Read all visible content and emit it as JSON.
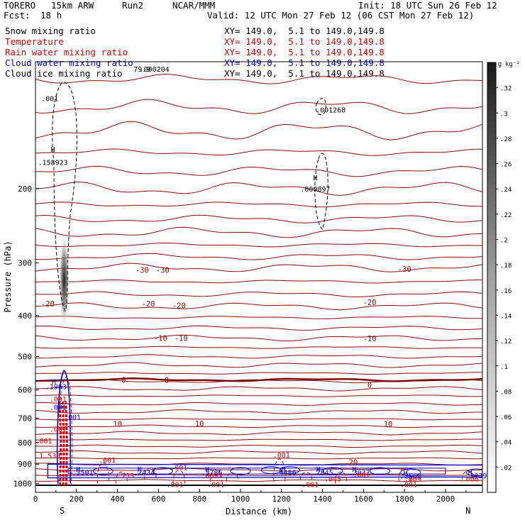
{
  "header": {
    "model": "TORERO",
    "resolution": "15km ARW",
    "run": "Run2",
    "org": "NCAR/MMM",
    "init": "Init: 18 UTC Sun 26 Feb 12",
    "fcst_label": "Fcst:",
    "fcst_value": "18 h",
    "valid": "Valid: 12 UTC Mon 27 Feb 12 (06 CST Mon 27 Feb 12)",
    "fields": [
      {
        "name": "Snow mixing ratio",
        "color": "#000000",
        "xy": "XY= 149.0,  5.1 to 149.0,149.8"
      },
      {
        "name": "Temperature",
        "color": "#d40000",
        "xy": "XY= 149.0,  5.1 to 149.0,149.8"
      },
      {
        "name": "Rain water mixing ratio",
        "color": "#d40000",
        "xy": "XY= 149.0,  5.1 to 149.0,149.8"
      },
      {
        "name": "Cloud water mixing ratio",
        "color": "#0000cc",
        "xy": "XY= 149.0,  5.1 to 149.0,149.8"
      },
      {
        "name": "Cloud ice mixing ratio",
        "color": "#000000",
        "xy": "XY= 149.0,  5.1 to 149.0,149.8"
      }
    ]
  },
  "chart_data": {
    "type": "contour",
    "xlabel": "Distance (km)",
    "ylabel": "Pressure (hPa)",
    "xlim": [
      0,
      2180
    ],
    "ylim": [
      1050,
      100
    ],
    "x_ticks": [
      0,
      200,
      400,
      600,
      800,
      1000,
      1200,
      1400,
      1600,
      1800,
      2000
    ],
    "y_ticks": [
      200,
      300,
      400,
      500,
      600,
      700,
      800,
      900,
      1000
    ],
    "endpoint_labels": {
      "left": "S",
      "right": "N"
    },
    "colorbar": {
      "unit": "g kg⁻¹",
      "ticks": [
        ".02",
        ".04",
        ".06",
        ".08",
        ".1",
        ".12",
        ".14",
        ".16",
        ".18",
        ".2",
        ".22",
        ".24",
        ".26",
        ".28",
        ".3",
        ".32"
      ]
    },
    "colors": {
      "temperature": "#8b0a0a",
      "zero_isotherm": "#7a0000",
      "rain": "#e00000",
      "cloud_water": "#0000dd",
      "cloud_ice": "#000000",
      "ground": "#000000"
    },
    "isotherm_labels": [
      {
        "value": "-30",
        "x": 520,
        "p": 312
      },
      {
        "value": "-30",
        "x": 620,
        "p": 312
      },
      {
        "value": "-30",
        "x": 1800,
        "p": 310
      },
      {
        "value": "-20",
        "x": 60,
        "p": 375
      },
      {
        "value": "-20",
        "x": 550,
        "p": 375
      },
      {
        "value": "-20",
        "x": 700,
        "p": 378
      },
      {
        "value": "-20",
        "x": 1630,
        "p": 372
      },
      {
        "value": "-10",
        "x": 610,
        "p": 452
      },
      {
        "value": "-10",
        "x": 710,
        "p": 452
      },
      {
        "value": "-10",
        "x": 1630,
        "p": 453
      },
      {
        "value": "0",
        "x": 430,
        "p": 568
      },
      {
        "value": "0",
        "x": 640,
        "p": 568
      },
      {
        "value": "0",
        "x": 1630,
        "p": 584
      },
      {
        "value": "10",
        "x": 400,
        "p": 723
      },
      {
        "value": "10",
        "x": 800,
        "p": 721
      },
      {
        "value": "10",
        "x": 1720,
        "p": 722
      },
      {
        "value": "20",
        "x": 1550,
        "p": 891
      }
    ],
    "extrema_labels": [
      {
        "text": "H",
        "x": 85,
        "p": 161
      },
      {
        "text": ".158923",
        "x": 85,
        "p": 173
      },
      {
        "text": "H",
        "x": 1365,
        "p": 188
      },
      {
        "text": ".009897",
        "x": 1365,
        "p": 200
      },
      {
        "text": ".001268",
        "x": 1440,
        "p": 130
      },
      {
        "text": ".001",
        "x": 70,
        "p": 122
      },
      {
        "text": "79.9",
        "x": 520,
        "p": 104
      },
      {
        "text": ".000204",
        "x": 580,
        "p": 104
      }
    ],
    "cloud_water_labels": [
      {
        "text": "H",
        "x": 90,
        "p": 573
      },
      {
        "text": ".1963",
        "x": 100,
        "p": 588
      },
      {
        "text": ".001",
        "x": 110,
        "p": 658
      },
      {
        "text": ".001",
        "x": 180,
        "p": 695
      },
      {
        "text": "H",
        "x": 208,
        "p": 924
      },
      {
        "text": ".3501",
        "x": 230,
        "p": 940
      },
      {
        "text": "H",
        "x": 508,
        "p": 924
      },
      {
        "text": ".2434",
        "x": 530,
        "p": 940
      },
      {
        "text": "H",
        "x": 838,
        "p": 924
      },
      {
        "text": ".5786",
        "x": 860,
        "p": 940
      },
      {
        "text": "H",
        "x": 1210,
        "p": 924
      },
      {
        "text": ".4486",
        "x": 1220,
        "p": 940
      },
      {
        "text": "H",
        "x": 1380,
        "p": 924
      },
      {
        "text": ".2845",
        "x": 1400,
        "p": 940
      },
      {
        "text": "H",
        "x": 1555,
        "p": 924
      },
      {
        "text": ".3037",
        "x": 1580,
        "p": 940
      },
      {
        "text": "H",
        "x": 1805,
        "p": 942
      },
      {
        "text": ".2568",
        "x": 1830,
        "p": 958
      },
      {
        "text": "H",
        "x": 2120,
        "p": 940
      },
      {
        "text": ".2039",
        "x": 2150,
        "p": 957
      }
    ],
    "rain_labels": [
      {
        "text": ".001",
        "x": 110,
        "p": 630
      },
      {
        "text": ".001",
        "x": 110,
        "p": 742
      },
      {
        "text": ".001",
        "x": 40,
        "p": 792
      },
      {
        "text": "1.533",
        "x": 70,
        "p": 858
      },
      {
        "text": ".001",
        "x": 350,
        "p": 878
      },
      {
        "text": ".001",
        "x": 1200,
        "p": 855
      },
      {
        "text": ".001",
        "x": 700,
        "p": 915
      },
      {
        "text": ".733",
        "x": 440,
        "p": 957
      },
      {
        "text": ".0697",
        "x": 860,
        "p": 957
      },
      {
        "text": ".045",
        "x": 1450,
        "p": 973
      },
      {
        "text": ".009",
        "x": 1840,
        "p": 973
      },
      {
        "text": ".006",
        "x": 2120,
        "p": 973
      },
      {
        "text": ".001",
        "x": 1590,
        "p": 952
      },
      {
        "text": ".001",
        "x": 680,
        "p": 1005
      },
      {
        "text": ".001",
        "x": 880,
        "p": 1005
      },
      {
        "text": ".001",
        "x": 1340,
        "p": 1005
      },
      {
        "text": ".001",
        "x": 1820,
        "p": 1005
      }
    ]
  }
}
